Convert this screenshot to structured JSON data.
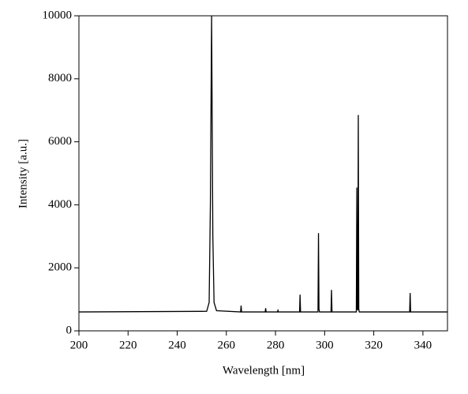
{
  "chart_data": {
    "type": "line",
    "x_label": "Wavelength [nm]",
    "y_label": "Intensity [a.u.]",
    "x": [
      200,
      252,
      253,
      253.5,
      254,
      254.5,
      255,
      256,
      265.8,
      266,
      266.2,
      275.8,
      276,
      276.2,
      280.8,
      281,
      281.2,
      289.8,
      290,
      290.2,
      297.3,
      297.5,
      297.7,
      297.9,
      302.6,
      302.8,
      303,
      312.9,
      313.1,
      313.3,
      313.5,
      313.7,
      313.9,
      314.1,
      334.6,
      334.8,
      335,
      350
    ],
    "series": [
      {
        "color": "#000000",
        "values": [
          600,
          620,
          900,
          4000,
          10000,
          3000,
          900,
          640,
          600,
          800,
          600,
          600,
          720,
          600,
          600,
          650,
          600,
          600,
          1150,
          600,
          600,
          3100,
          700,
          600,
          600,
          1300,
          600,
          600,
          4550,
          700,
          650,
          6850,
          700,
          600,
          600,
          1200,
          600,
          600
        ]
      }
    ],
    "xlim": [
      200,
      350
    ],
    "xticks": [
      200,
      220,
      240,
      260,
      280,
      300,
      320,
      340
    ],
    "ylim": [
      0,
      10000
    ],
    "yticks": [
      0,
      2000,
      4000,
      6000,
      8000,
      10000
    ]
  }
}
